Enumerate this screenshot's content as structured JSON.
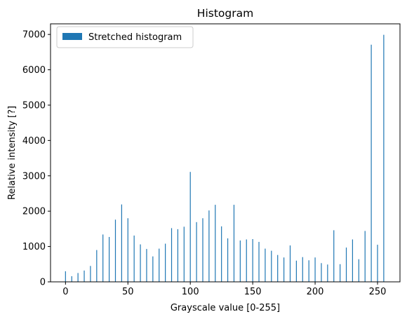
{
  "chart_data": {
    "type": "bar",
    "title": "Histogram",
    "xlabel": "Grayscale value [0-255]",
    "ylabel": "Relative intensity [?]",
    "xlim": [
      -12,
      268
    ],
    "ylim": [
      0,
      7300
    ],
    "xticks": [
      0,
      50,
      100,
      150,
      200,
      250
    ],
    "yticks": [
      0,
      1000,
      2000,
      3000,
      4000,
      5000,
      6000,
      7000
    ],
    "grid": false,
    "legend": {
      "position": "top-left",
      "entries": [
        "Stretched histogram"
      ]
    },
    "colors": {
      "bar": "#1f77b4"
    },
    "series": [
      {
        "name": "Stretched histogram",
        "x": [
          0,
          5,
          10,
          15,
          20,
          25,
          30,
          35,
          40,
          45,
          50,
          55,
          60,
          65,
          70,
          75,
          80,
          85,
          90,
          95,
          100,
          105,
          110,
          115,
          120,
          125,
          130,
          135,
          140,
          145,
          150,
          155,
          160,
          165,
          170,
          175,
          180,
          185,
          190,
          195,
          200,
          205,
          210,
          215,
          220,
          225,
          230,
          235,
          240,
          245,
          250,
          255
        ],
        "values": [
          300,
          160,
          250,
          320,
          450,
          900,
          1340,
          1270,
          1760,
          2190,
          1800,
          1310,
          1060,
          930,
          720,
          940,
          1080,
          1520,
          1490,
          1560,
          3110,
          1690,
          1800,
          2020,
          2180,
          1570,
          1230,
          2180,
          1170,
          1200,
          1210,
          1130,
          940,
          880,
          760,
          690,
          1030,
          600,
          700,
          610,
          690,
          530,
          490,
          1460,
          500,
          970,
          1200,
          640,
          1440,
          6710,
          1050,
          6990
        ]
      }
    ]
  }
}
